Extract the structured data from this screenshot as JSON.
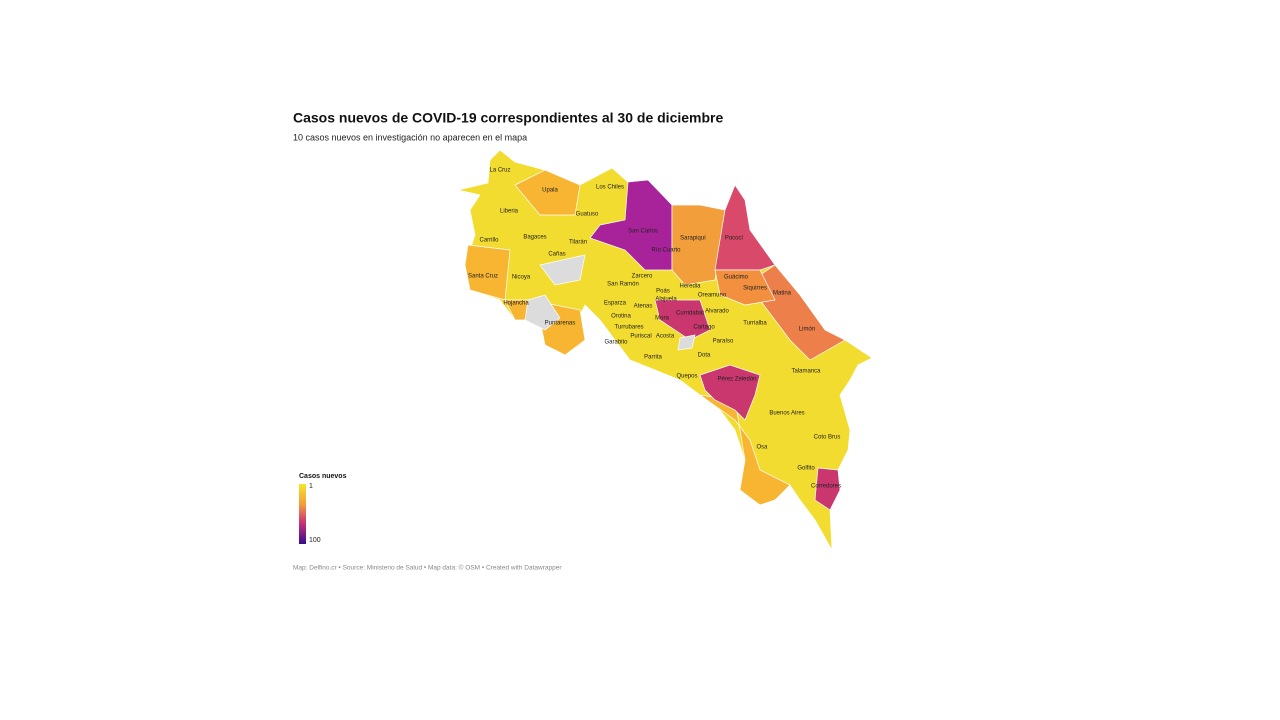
{
  "header": {
    "title": "Casos nuevos de COVID-19 correspondientes al 30 de diciembre",
    "subtitle": "10 casos nuevos en investigación no aparecen en el mapa"
  },
  "legend": {
    "title": "Casos nuevos",
    "ticks": [
      1,
      100
    ]
  },
  "labels": [
    "La Cruz",
    "Upala",
    "Los Chiles",
    "Liberia",
    "Guatuso",
    "San Carlos",
    "Sarapiquí",
    "Pococí",
    "Carrillo",
    "Bagaces",
    "Tilarán",
    "Río Cuarto",
    "Cañas",
    "Guácimo",
    "Santa Cruz",
    "Nicoya",
    "Zarcero",
    "San Ramón",
    "Heredia",
    "Siquirres",
    "Poás",
    "Matina",
    "Oreamuno",
    "Hojancha",
    "Esparza",
    "Atenas",
    "Alajuela",
    "Alvarado",
    "Curridabat",
    "Orotina",
    "Mora",
    "Puntarenas",
    "Turrialba",
    "Limón",
    "Turrubares",
    "Cartago",
    "Puriscal",
    "Acosta",
    "Paraíso",
    "Garabito",
    "Dota",
    "Parrita",
    "Talamanca",
    "Quepos",
    "Pérez Zeledón",
    "Buenos Aires",
    "Coto Brus",
    "Osa",
    "Golfito",
    "Corredores"
  ],
  "footer": "Map: Delfino.cr • Source: Ministerio de Salud • Map data: © OSM • Created with Datawrapper"
}
